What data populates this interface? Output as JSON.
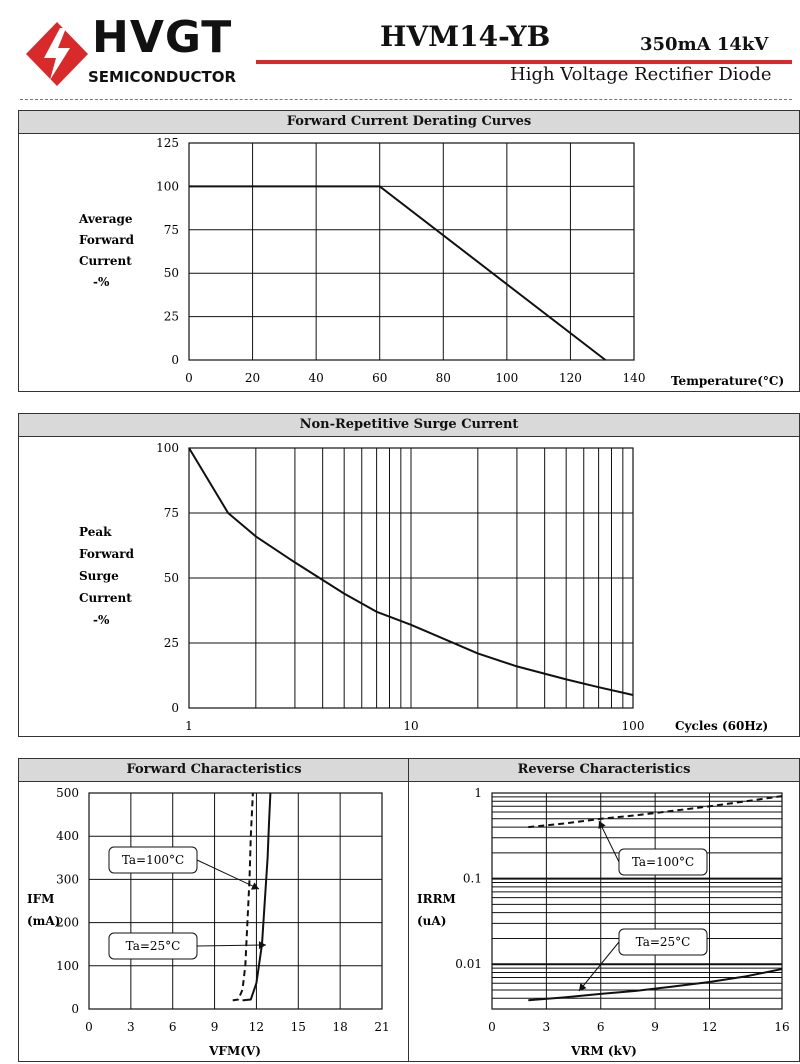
{
  "header": {
    "brand": "HVGT",
    "brand_sub": "SEMICONDUCTOR",
    "part_number": "HVM14-YB",
    "rating": "350mA 14kV",
    "description": "High Voltage Rectifier Diode",
    "accent_color": "#d82a2a"
  },
  "chart_data": [
    {
      "id": "derating",
      "type": "line",
      "title": "Forward Current Derating Curves",
      "ylabel": [
        "Average",
        "Forward",
        "Current",
        "-%"
      ],
      "xlabel": "Temperature(°C)",
      "xlim": [
        0,
        140
      ],
      "ylim": [
        0,
        125
      ],
      "xticks": [
        0,
        20,
        40,
        60,
        80,
        100,
        120,
        140
      ],
      "yticks": [
        0,
        25,
        50,
        75,
        100,
        125
      ],
      "grid": true,
      "series": [
        {
          "x": [
            0,
            60,
            131
          ],
          "y": [
            100,
            100,
            0
          ]
        }
      ]
    },
    {
      "id": "surge",
      "type": "line",
      "title": "Non-Repetitive Surge Current",
      "ylabel": [
        "Peak",
        "Forward",
        "Surge",
        "Current",
        "-%"
      ],
      "xlabel": "Cycles (60Hz)",
      "xscale": "log",
      "xlim": [
        1,
        100
      ],
      "ylim": [
        0,
        100
      ],
      "xticks": [
        1,
        10,
        100
      ],
      "yticks": [
        0,
        25,
        50,
        75,
        100
      ],
      "grid": true,
      "series": [
        {
          "x": [
            1,
            1.5,
            2,
            3,
            5,
            7,
            10,
            20,
            30,
            50,
            70,
            100
          ],
          "y": [
            100,
            75,
            66,
            56,
            44,
            37,
            32,
            21,
            16,
            11,
            8,
            5
          ]
        }
      ]
    },
    {
      "id": "forward",
      "type": "line",
      "title": "Forward Characteristics",
      "ylabel": [
        "IFM",
        "(mA)"
      ],
      "xlabel": "VFM(V)",
      "xlim": [
        0,
        21
      ],
      "ylim": [
        0,
        500
      ],
      "xticks": [
        0,
        3,
        6,
        9,
        12,
        15,
        18,
        21
      ],
      "yticks": [
        0,
        100,
        200,
        300,
        400,
        500
      ],
      "grid": true,
      "series": [
        {
          "name": "Ta=100°C",
          "style": "dashed",
          "x": [
            10.3,
            10.7,
            11.0,
            11.2,
            11.35,
            11.5,
            11.6,
            11.75
          ],
          "y": [
            20,
            22,
            45,
            100,
            200,
            300,
            400,
            500
          ]
        },
        {
          "name": "Ta=25°C",
          "style": "solid",
          "x": [
            11.0,
            11.6,
            12.0,
            12.4,
            12.6,
            12.8,
            12.9,
            13.0
          ],
          "y": [
            20,
            22,
            60,
            150,
            250,
            350,
            430,
            500
          ]
        }
      ]
    },
    {
      "id": "reverse",
      "type": "line",
      "title": "Reverse Characteristics",
      "ylabel": [
        "IRRM",
        "(uA)"
      ],
      "xlabel": "VRM (kV)",
      "yscale": "log",
      "xlim": [
        0,
        16
      ],
      "ylim": [
        0.003,
        1
      ],
      "xticks": [
        0,
        3,
        6,
        9,
        12,
        16
      ],
      "yticks": [
        0.01,
        0.1,
        1
      ],
      "ytick_labels": [
        "0.01",
        "0.1",
        "1"
      ],
      "grid": true,
      "series": [
        {
          "name": "Ta=100°C",
          "style": "dashed",
          "x": [
            2,
            4,
            6,
            8,
            10,
            12,
            14,
            16
          ],
          "y": [
            0.4,
            0.44,
            0.5,
            0.55,
            0.62,
            0.7,
            0.8,
            0.92
          ]
        },
        {
          "name": "Ta=25°C",
          "style": "solid",
          "x": [
            2,
            4,
            6,
            8,
            10,
            12,
            14,
            16
          ],
          "y": [
            0.0038,
            0.0041,
            0.0045,
            0.0049,
            0.0055,
            0.0062,
            0.0072,
            0.0088
          ]
        }
      ]
    }
  ]
}
